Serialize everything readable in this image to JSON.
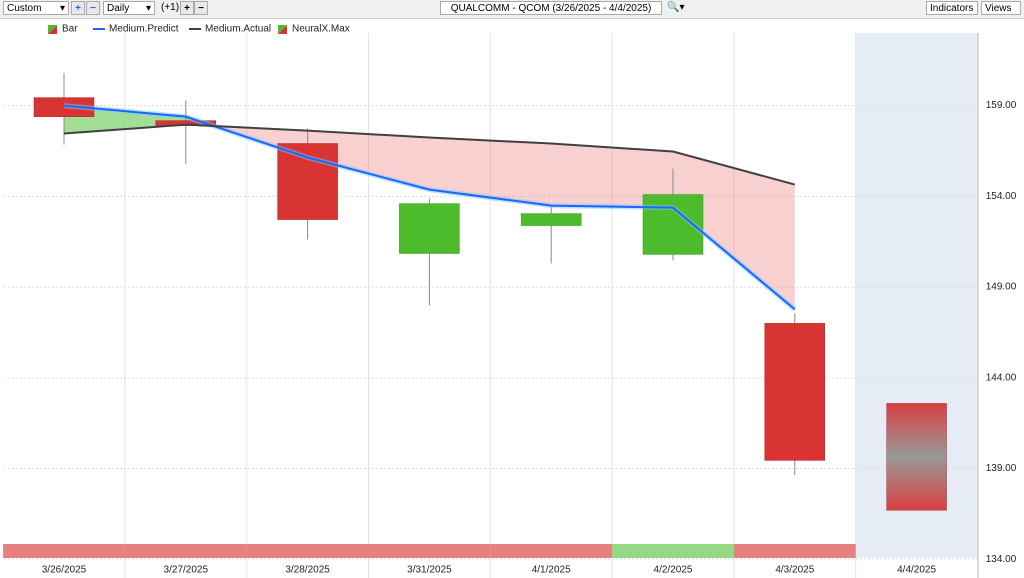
{
  "toolbar": {
    "mode": "Custom",
    "period": "Daily",
    "offset": "(+1)",
    "indicators": "Indicators",
    "views": "Views"
  },
  "chart_data": {
    "type": "candlestick",
    "title": "QUALCOMM - QCOM (3/26/2025 - 4/4/2025)",
    "categories": [
      "3/26/2025",
      "3/27/2025",
      "3/28/2025",
      "3/31/2025",
      "4/1/2025",
      "4/2/2025",
      "4/3/2025",
      "4/4/2025"
    ],
    "ohlc": {
      "name": "Bar",
      "up_color": "#4cbb2c",
      "down_color": "#d93434",
      "open": [
        159.44,
        158.17,
        156.91,
        150.85,
        152.39,
        150.8,
        147.0,
        null
      ],
      "high": [
        160.8,
        159.28,
        157.73,
        153.88,
        153.44,
        155.53,
        147.55,
        null
      ],
      "low": [
        156.85,
        155.8,
        151.62,
        147.99,
        150.3,
        150.47,
        138.63,
        null
      ],
      "close": [
        158.39,
        157.9,
        152.72,
        153.6,
        153.05,
        154.1,
        139.45,
        null
      ]
    },
    "series": [
      {
        "name": "Medium.Predict",
        "color": "#1a66ff",
        "values": [
          159.0,
          158.39,
          156.14,
          154.37,
          153.49,
          153.38,
          147.77,
          null
        ]
      },
      {
        "name": "Medium.Actual",
        "color": "#404040",
        "values": [
          157.46,
          157.95,
          157.62,
          157.24,
          156.91,
          156.47,
          154.65,
          null
        ]
      }
    ],
    "fill_above_color": "rgba(100,200,80,0.6)",
    "fill_below_color": "rgba(235,120,120,0.35)",
    "range": {
      "name": "NeuralX.Max",
      "high": [
        null,
        null,
        null,
        null,
        null,
        null,
        null,
        142.59
      ],
      "low": [
        null,
        null,
        null,
        null,
        null,
        null,
        null,
        136.7
      ]
    },
    "signal_colors": [
      "#e88080",
      "#e88080",
      "#e88080",
      "#e88080",
      "#e88080",
      "#95d985",
      "#e88080",
      null
    ],
    "ylim": [
      133.3,
      163
    ],
    "yticks": [
      {
        "value": 134,
        "label": "134.00"
      },
      {
        "value": 139,
        "label": "139.00"
      },
      {
        "value": 144,
        "label": "144.00"
      },
      {
        "value": 149,
        "label": "149.00"
      },
      {
        "value": 154,
        "label": "154.00"
      },
      {
        "value": 159,
        "label": "159.00"
      }
    ],
    "grid": true
  }
}
